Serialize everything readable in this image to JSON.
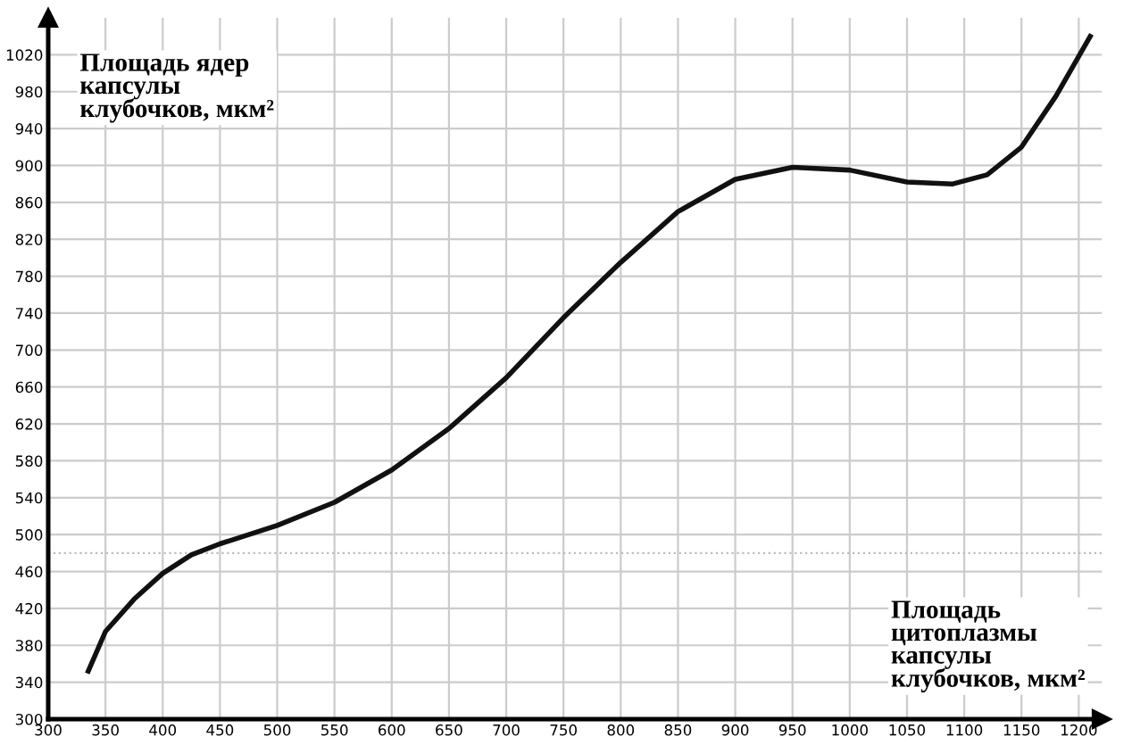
{
  "chart_data": {
    "type": "line",
    "xlabel": "Площадь цитоплазмы капсулы клубочков, мкм²",
    "ylabel": "Площадь ядер капсулы клубочков, мкм²",
    "x": [
      335,
      350,
      375,
      400,
      425,
      450,
      500,
      550,
      600,
      650,
      700,
      750,
      800,
      850,
      900,
      950,
      1000,
      1050,
      1090,
      1120,
      1150,
      1180,
      1210
    ],
    "series": [
      {
        "color": "#111111",
        "values": [
          352,
          395,
          430,
          458,
          478,
          490,
          510,
          535,
          570,
          615,
          670,
          735,
          795,
          850,
          885,
          898,
          895,
          882,
          880,
          890,
          920,
          975,
          1040
        ]
      }
    ],
    "xlim": [
      300,
      1220
    ],
    "ylim": [
      300,
      1060
    ],
    "xticks": [
      300,
      350,
      400,
      450,
      500,
      550,
      600,
      650,
      700,
      750,
      800,
      850,
      900,
      950,
      1000,
      1050,
      1100,
      1150,
      1200
    ],
    "yticks": [
      300,
      340,
      380,
      420,
      460,
      500,
      540,
      580,
      620,
      660,
      700,
      740,
      780,
      820,
      860,
      900,
      940,
      980,
      1020
    ],
    "ref_lines": [
      {
        "axis": "y",
        "value": 480,
        "color": "#bbbbbb",
        "line_style": "dotted"
      }
    ],
    "grid": true,
    "marker": "none",
    "line_style": "solid"
  }
}
